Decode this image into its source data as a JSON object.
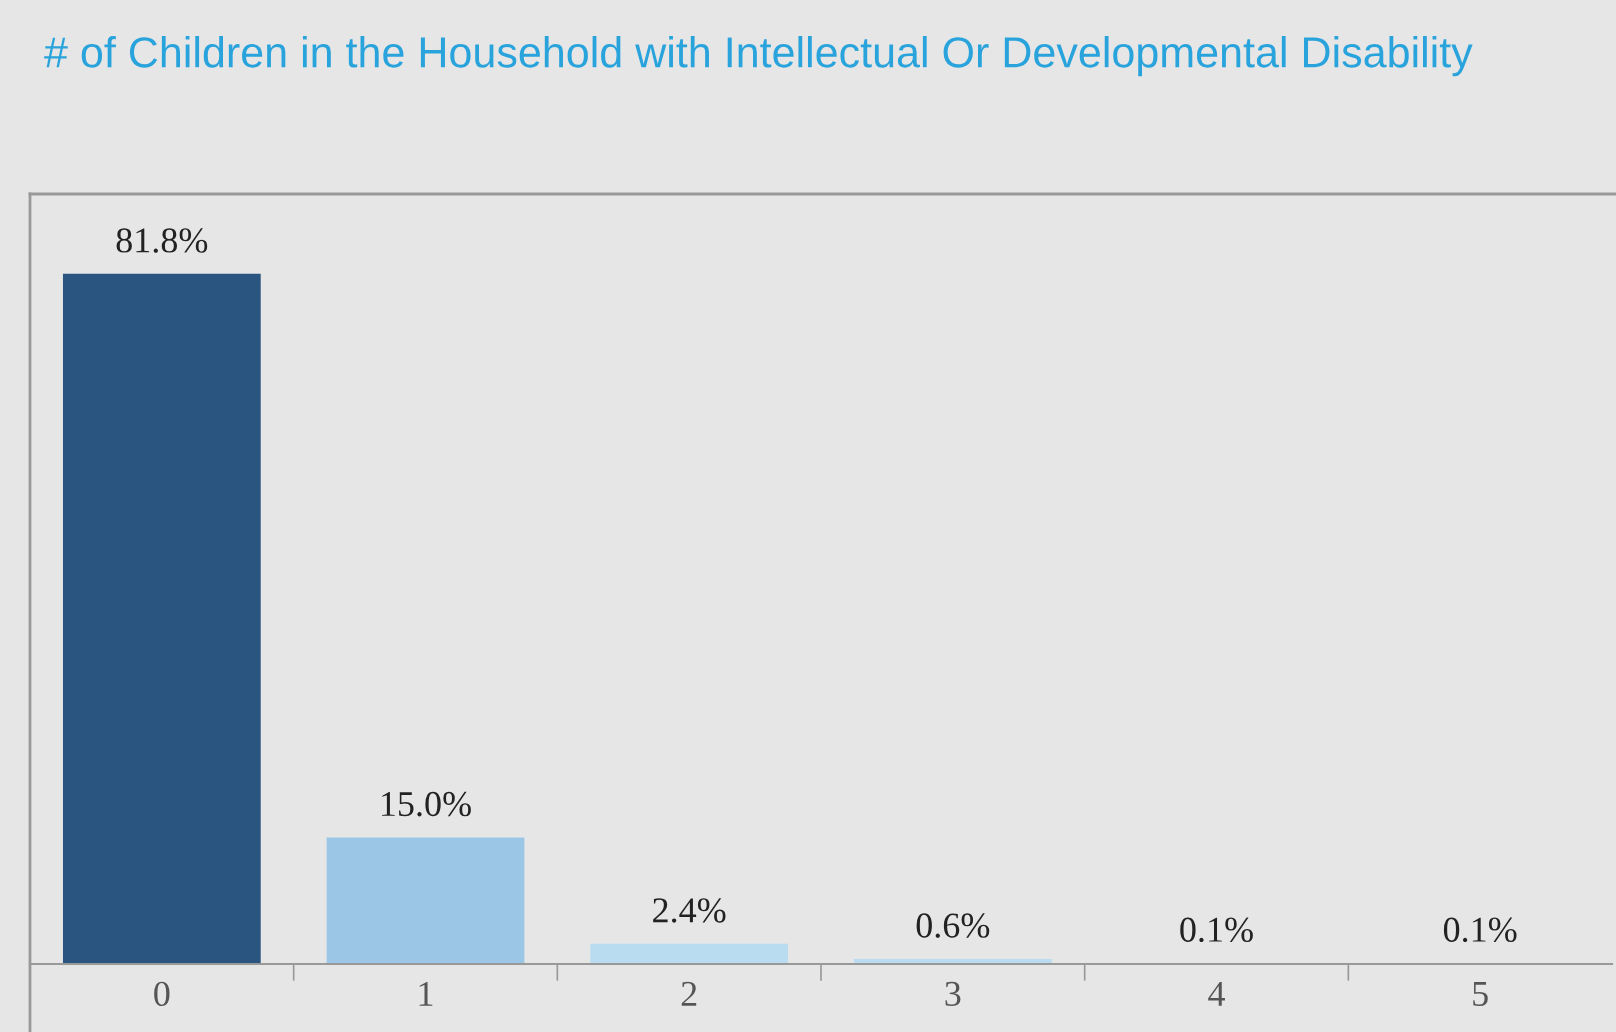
{
  "chart_data": {
    "type": "bar",
    "title": "# of Children in the Household with Intellectual Or Developmental Disability",
    "categories": [
      "0",
      "1",
      "2",
      "3",
      "4",
      "5"
    ],
    "values": [
      81.8,
      15.0,
      2.4,
      0.6,
      0.1,
      0.1
    ],
    "colors": [
      "#2a5580",
      "#9cc6e6",
      "#badcf0",
      "#badcf0",
      "#badcf0",
      "#badcf0"
    ],
    "value_labels": [
      "81.8%",
      "15.0%",
      "2.4%",
      "0.6%",
      "0.1%",
      "0.1%"
    ],
    "grid": false,
    "legend": false
  }
}
